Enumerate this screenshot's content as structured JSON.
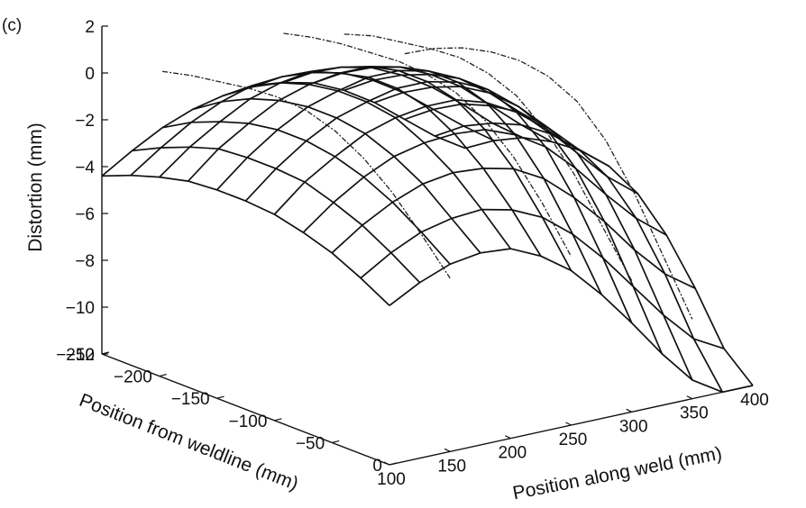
{
  "panel_label": "(c)",
  "chart_data": {
    "type": "surface3d",
    "zlabel": "Distortion (mm)",
    "ylabel": "Position from weldline (mm)",
    "xlabel": "Position along weld (mm)",
    "zlim": [
      -12,
      2
    ],
    "ylim": [
      -250,
      0
    ],
    "xlim": [
      100,
      400
    ],
    "z_ticks": [
      "2",
      "0",
      "−2",
      "−4",
      "−6",
      "−8",
      "−10",
      "−12"
    ],
    "z_tick_values": [
      2,
      0,
      -2,
      -4,
      -6,
      -8,
      -10,
      -12
    ],
    "y_ticks": [
      "−250",
      "−200",
      "−150",
      "−100",
      "−50",
      "0"
    ],
    "y_tick_values": [
      -250,
      -200,
      -150,
      -100,
      -50,
      0
    ],
    "x_ticks": [
      "100",
      "150",
      "200",
      "250",
      "300",
      "350",
      "400"
    ],
    "x_tick_values": [
      100,
      150,
      200,
      250,
      300,
      350,
      400
    ],
    "mesh_x": [
      100,
      125,
      150,
      175,
      200,
      225,
      250,
      275,
      300,
      325,
      350,
      375,
      400
    ],
    "mesh_y": [
      -250,
      -225,
      -200,
      -175,
      -150,
      -125,
      -100,
      -75,
      -50,
      -25,
      0
    ],
    "surface_z": [
      [
        -4.4,
        -3.9,
        -3.5,
        -3.2,
        -3.1,
        -3.1,
        -3.2,
        -3.5,
        -3.9,
        -4.5,
        -5.2
      ],
      [
        -3.6,
        -3.0,
        -2.5,
        -2.1,
        -2.0,
        -2.0,
        -2.1,
        -2.5,
        -3.0,
        -3.7,
        -4.5
      ],
      [
        -2.9,
        -2.2,
        -1.7,
        -1.3,
        -1.1,
        -1.1,
        -1.3,
        -1.7,
        -2.3,
        -3.1,
        -4.0
      ],
      [
        -2.4,
        -1.6,
        -1.0,
        -0.6,
        -0.4,
        -0.4,
        -0.6,
        -1.1,
        -1.8,
        -2.8,
        -3.8
      ],
      [
        -2.1,
        -1.2,
        -0.6,
        -0.2,
        0.0,
        0.0,
        -0.2,
        -0.8,
        -1.6,
        -2.7,
        -3.9
      ],
      [
        -2.0,
        -1.1,
        -0.4,
        0.0,
        0.3,
        0.3,
        0.0,
        -0.7,
        -1.7,
        -3.0,
        -4.5
      ],
      [
        -2.1,
        -1.2,
        -0.5,
        0.0,
        0.3,
        0.3,
        0.0,
        -0.8,
        -2.0,
        -3.6,
        -5.4
      ],
      [
        -2.4,
        -1.5,
        -0.8,
        -0.3,
        0.0,
        0.0,
        -0.4,
        -1.3,
        -2.7,
        -4.6,
        -6.7
      ],
      [
        -3.0,
        -2.1,
        -1.4,
        -0.9,
        -0.6,
        -0.6,
        -1.1,
        -2.1,
        -3.8,
        -5.9,
        -8.2
      ],
      [
        -3.8,
        -2.9,
        -2.2,
        -1.7,
        -1.5,
        -1.6,
        -2.1,
        -3.3,
        -5.1,
        -7.4,
        -9.8
      ],
      [
        -4.8,
        -3.9,
        -3.2,
        -2.8,
        -2.6,
        -2.8,
        -3.4,
        -4.7,
        -6.6,
        -8.9,
        -11.2
      ],
      [
        -5.8,
        -4.9,
        -4.3,
        -3.9,
        -3.8,
        -4.0,
        -4.7,
        -6.0,
        -7.9,
        -10.2,
        -12.0
      ],
      [
        -6.6,
        -5.8,
        -5.2,
        -4.9,
        -4.8,
        -5.0,
        -5.7,
        -7.0,
        -8.8,
        -10.9,
        -12.0
      ]
    ],
    "measured_lines": [
      {
        "x": 150,
        "z": [
          -0.5,
          -0.2,
          0.0,
          0.2,
          0.3,
          0.2,
          -0.2,
          -0.9,
          -1.9,
          -3.2,
          -4.6
        ]
      },
      {
        "x": 250,
        "z": [
          0.0,
          0.3,
          0.5,
          0.6,
          0.7,
          0.6,
          0.3,
          -0.4,
          -1.5,
          -3.0,
          -4.8
        ]
      },
      {
        "x": 300,
        "z": [
          -0.6,
          -0.2,
          0.0,
          0.2,
          0.3,
          0.1,
          -0.4,
          -1.4,
          -2.8,
          -4.6,
          -6.4
        ]
      },
      {
        "x": 350,
        "z": [
          -2.0,
          -1.3,
          -0.8,
          -0.5,
          -0.4,
          -0.6,
          -1.2,
          -2.4,
          -4.2,
          -6.4,
          -8.6
        ]
      }
    ]
  }
}
